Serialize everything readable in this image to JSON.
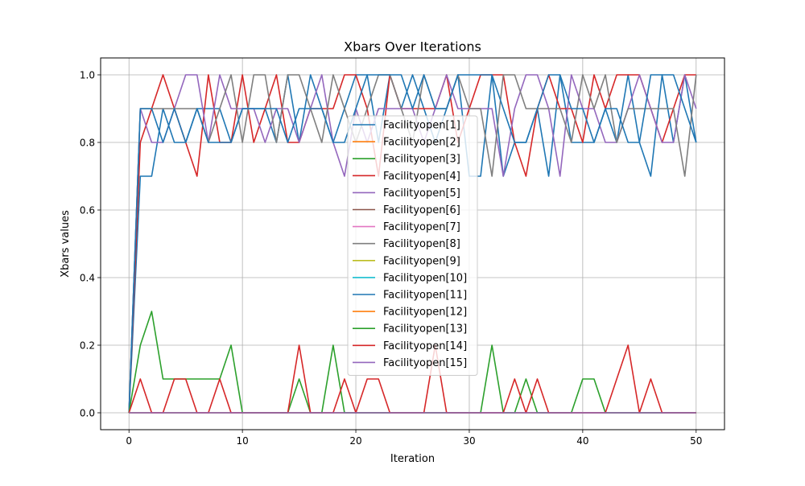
{
  "chart_data": {
    "type": "line",
    "title": "Xbars Over Iterations",
    "xlabel": "Iteration",
    "ylabel": "Xbars values",
    "xlim": [
      -2.5,
      52.5
    ],
    "ylim": [
      -0.05,
      1.05
    ],
    "x_ticks": [
      0,
      10,
      20,
      30,
      40,
      50
    ],
    "x_tick_labels": [
      "0",
      "10",
      "20",
      "30",
      "40",
      "50"
    ],
    "y_ticks": [
      0.0,
      0.2,
      0.4,
      0.6,
      0.8,
      1.0
    ],
    "y_tick_labels": [
      "0.0",
      "0.2",
      "0.4",
      "0.6",
      "0.8",
      "1.0"
    ],
    "grid": true,
    "legend_position": "center",
    "x": [
      0,
      1,
      2,
      3,
      4,
      5,
      6,
      7,
      8,
      9,
      10,
      11,
      12,
      13,
      14,
      15,
      16,
      17,
      18,
      19,
      20,
      21,
      22,
      23,
      24,
      25,
      26,
      27,
      28,
      29,
      30,
      31,
      32,
      33,
      34,
      35,
      36,
      37,
      38,
      39,
      40,
      41,
      42,
      43,
      44,
      45,
      46,
      47,
      48,
      49,
      50
    ],
    "series": [
      {
        "name": "Facilityopen[1]",
        "color": "#1f77b4",
        "values": [
          0,
          0.7,
          0.7,
          0.9,
          0.8,
          0.8,
          0.9,
          0.9,
          0.9,
          0.8,
          0.9,
          0.9,
          0.9,
          0.8,
          1.0,
          0.8,
          1.0,
          0.9,
          0.8,
          0.9,
          1.0,
          1.0,
          0.8,
          1.0,
          0.9,
          1.0,
          0.9,
          0.8,
          0.9,
          1.0,
          0.7,
          0.7,
          1.0,
          0.7,
          0.8,
          0.8,
          0.9,
          0.7,
          1.0,
          0.8,
          0.8,
          0.8,
          0.9,
          0.8,
          1.0,
          0.8,
          0.7,
          1.0,
          0.8,
          1.0,
          0.8
        ]
      },
      {
        "name": "Facilityopen[2]",
        "color": "#ff7f0e",
        "values": [
          0,
          0,
          0,
          0,
          0,
          0,
          0,
          0,
          0,
          0,
          0,
          0,
          0,
          0,
          0,
          0,
          0,
          0,
          0,
          0,
          0,
          0,
          0,
          0,
          0,
          0,
          0,
          0,
          0,
          0,
          0,
          0,
          0,
          0,
          0,
          0,
          0,
          0,
          0,
          0,
          0,
          0,
          0,
          0,
          0,
          0,
          0,
          0,
          0,
          0,
          0
        ]
      },
      {
        "name": "Facilityopen[3]",
        "color": "#2ca02c",
        "values": [
          0,
          0,
          0,
          0,
          0,
          0,
          0,
          0,
          0,
          0,
          0,
          0,
          0,
          0,
          0,
          0,
          0,
          0,
          0,
          0,
          0,
          0,
          0,
          0,
          0,
          0,
          0,
          0,
          0,
          0,
          0,
          0,
          0,
          0,
          0,
          0,
          0,
          0,
          0,
          0,
          0,
          0,
          0,
          0,
          0,
          0,
          0,
          0,
          0,
          0,
          0
        ]
      },
      {
        "name": "Facilityopen[4]",
        "color": "#d62728",
        "values": [
          0,
          0.8,
          0.9,
          1.0,
          0.9,
          0.8,
          0.7,
          1.0,
          0.8,
          0.8,
          1.0,
          0.8,
          0.9,
          1.0,
          0.8,
          0.8,
          0.9,
          0.9,
          0.9,
          1.0,
          1.0,
          0.9,
          0.7,
          1.0,
          0.9,
          0.9,
          0.9,
          0.9,
          1.0,
          0.8,
          0.9,
          1.0,
          1.0,
          1.0,
          0.8,
          0.7,
          0.9,
          1.0,
          0.9,
          0.9,
          0.8,
          1.0,
          0.9,
          1.0,
          1.0,
          1.0,
          0.9,
          0.8,
          0.9,
          1.0,
          1.0
        ]
      },
      {
        "name": "Facilityopen[5]",
        "color": "#9467bd",
        "values": [
          0,
          0.9,
          0.8,
          0.8,
          0.9,
          1.0,
          1.0,
          0.8,
          1.0,
          0.9,
          0.9,
          0.9,
          0.8,
          0.9,
          0.9,
          0.8,
          0.9,
          1.0,
          0.8,
          0.7,
          0.9,
          0.8,
          0.9,
          0.9,
          0.9,
          0.9,
          0.8,
          0.9,
          1.0,
          0.9,
          0.9,
          0.9,
          0.9,
          0.7,
          0.9,
          1.0,
          1.0,
          0.9,
          0.7,
          1.0,
          0.9,
          0.9,
          0.8,
          0.8,
          0.9,
          1.0,
          0.9,
          0.8,
          0.8,
          1.0,
          0.9
        ]
      },
      {
        "name": "Facilityopen[6]",
        "color": "#8c564b",
        "values": [
          0,
          0,
          0,
          0,
          0,
          0,
          0,
          0,
          0,
          0,
          0,
          0,
          0,
          0,
          0,
          0,
          0,
          0,
          0,
          0,
          0,
          0,
          0,
          0,
          0,
          0,
          0,
          0,
          0,
          0,
          0,
          0,
          0,
          0,
          0,
          0,
          0,
          0,
          0,
          0,
          0,
          0,
          0,
          0,
          0,
          0,
          0,
          0,
          0,
          0,
          0
        ]
      },
      {
        "name": "Facilityopen[7]",
        "color": "#e377c2",
        "values": [
          0,
          0,
          0,
          0,
          0,
          0,
          0,
          0,
          0,
          0,
          0,
          0,
          0,
          0,
          0,
          0,
          0,
          0,
          0,
          0,
          0,
          0,
          0,
          0,
          0,
          0,
          0,
          0,
          0,
          0,
          0,
          0,
          0,
          0,
          0,
          0,
          0,
          0,
          0,
          0,
          0,
          0,
          0,
          0,
          0,
          0,
          0,
          0,
          0,
          0,
          0
        ]
      },
      {
        "name": "Facilityopen[8]",
        "color": "#7f7f7f",
        "values": [
          0,
          0.9,
          0.9,
          0.9,
          0.9,
          0.9,
          0.9,
          0.8,
          0.9,
          1.0,
          0.8,
          1.0,
          1.0,
          0.8,
          1.0,
          1.0,
          0.9,
          0.8,
          1.0,
          0.9,
          0.8,
          0.9,
          1.0,
          1.0,
          0.9,
          0.8,
          1.0,
          0.9,
          0.9,
          1.0,
          0.9,
          0.9,
          0.7,
          1.0,
          1.0,
          0.9,
          0.9,
          0.9,
          0.9,
          0.8,
          1.0,
          0.9,
          1.0,
          0.8,
          0.9,
          0.9,
          0.9,
          0.9,
          0.9,
          0.7,
          1.0
        ]
      },
      {
        "name": "Facilityopen[9]",
        "color": "#bcbd22",
        "values": [
          0,
          0,
          0,
          0,
          0,
          0,
          0,
          0,
          0,
          0,
          0,
          0,
          0,
          0,
          0,
          0,
          0,
          0,
          0,
          0,
          0,
          0,
          0,
          0,
          0,
          0,
          0,
          0,
          0,
          0,
          0,
          0,
          0,
          0,
          0,
          0,
          0,
          0,
          0,
          0,
          0,
          0,
          0,
          0,
          0,
          0,
          0,
          0,
          0,
          0,
          0
        ]
      },
      {
        "name": "Facilityopen[10]",
        "color": "#17becf",
        "values": [
          0,
          0,
          0,
          0,
          0,
          0,
          0,
          0,
          0,
          0,
          0,
          0,
          0,
          0,
          0,
          0,
          0,
          0,
          0,
          0,
          0,
          0,
          0,
          0,
          0,
          0,
          0,
          0,
          0,
          0,
          0,
          0,
          0,
          0,
          0,
          0,
          0,
          0,
          0,
          0,
          0,
          0,
          0,
          0,
          0,
          0,
          0,
          0,
          0,
          0,
          0
        ]
      },
      {
        "name": "Facilityopen[11]",
        "color": "#1f77b4",
        "values": [
          0,
          0.9,
          0.9,
          0.8,
          0.9,
          0.8,
          0.9,
          0.8,
          0.8,
          0.8,
          0.9,
          0.9,
          0.9,
          0.9,
          0.8,
          0.9,
          0.9,
          0.9,
          0.8,
          0.8,
          0.9,
          1.0,
          1.0,
          1.0,
          1.0,
          0.9,
          1.0,
          0.9,
          0.9,
          1.0,
          1.0,
          1.0,
          1.0,
          0.9,
          0.8,
          0.8,
          0.9,
          1.0,
          1.0,
          0.9,
          0.9,
          0.8,
          0.9,
          0.9,
          0.8,
          0.8,
          1.0,
          1.0,
          1.0,
          0.9,
          0.8
        ]
      },
      {
        "name": "Facilityopen[12]",
        "color": "#ff7f0e",
        "values": [
          0,
          0,
          0,
          0,
          0,
          0,
          0,
          0,
          0,
          0,
          0,
          0,
          0,
          0,
          0,
          0,
          0,
          0,
          0,
          0,
          0,
          0,
          0,
          0,
          0,
          0,
          0,
          0,
          0,
          0,
          0,
          0,
          0,
          0,
          0,
          0,
          0,
          0,
          0,
          0,
          0,
          0,
          0,
          0,
          0,
          0,
          0,
          0,
          0,
          0,
          0
        ]
      },
      {
        "name": "Facilityopen[13]",
        "color": "#2ca02c",
        "values": [
          0,
          0.2,
          0.3,
          0.1,
          0.1,
          0.1,
          0.1,
          0.1,
          0.1,
          0.2,
          0,
          0,
          0,
          0,
          0,
          0.1,
          0,
          0,
          0.2,
          0,
          0,
          0,
          0,
          0,
          0,
          0,
          0,
          0,
          0,
          0,
          0,
          0,
          0.2,
          0,
          0,
          0.1,
          0,
          0,
          0,
          0,
          0.1,
          0.1,
          0,
          0,
          0,
          0,
          0,
          0,
          0,
          0,
          0
        ]
      },
      {
        "name": "Facilityopen[14]",
        "color": "#d62728",
        "values": [
          0,
          0.1,
          0,
          0,
          0.1,
          0.1,
          0,
          0,
          0.1,
          0,
          0,
          0,
          0,
          0,
          0,
          0.2,
          0,
          0,
          0,
          0.1,
          0,
          0.1,
          0.1,
          0,
          0,
          0,
          0,
          0.2,
          0,
          0,
          0,
          0,
          0,
          0,
          0.1,
          0,
          0.1,
          0,
          0,
          0,
          0,
          0,
          0,
          0.1,
          0.2,
          0,
          0.1,
          0,
          0,
          0,
          0
        ]
      },
      {
        "name": "Facilityopen[15]",
        "color": "#9467bd",
        "values": [
          0,
          0,
          0,
          0,
          0,
          0,
          0,
          0,
          0,
          0,
          0,
          0,
          0,
          0,
          0,
          0,
          0,
          0,
          0,
          0,
          0,
          0,
          0,
          0,
          0,
          0,
          0,
          0,
          0,
          0,
          0,
          0,
          0,
          0,
          0,
          0,
          0,
          0,
          0,
          0,
          0,
          0,
          0,
          0,
          0,
          0,
          0,
          0,
          0,
          0,
          0
        ]
      }
    ]
  }
}
